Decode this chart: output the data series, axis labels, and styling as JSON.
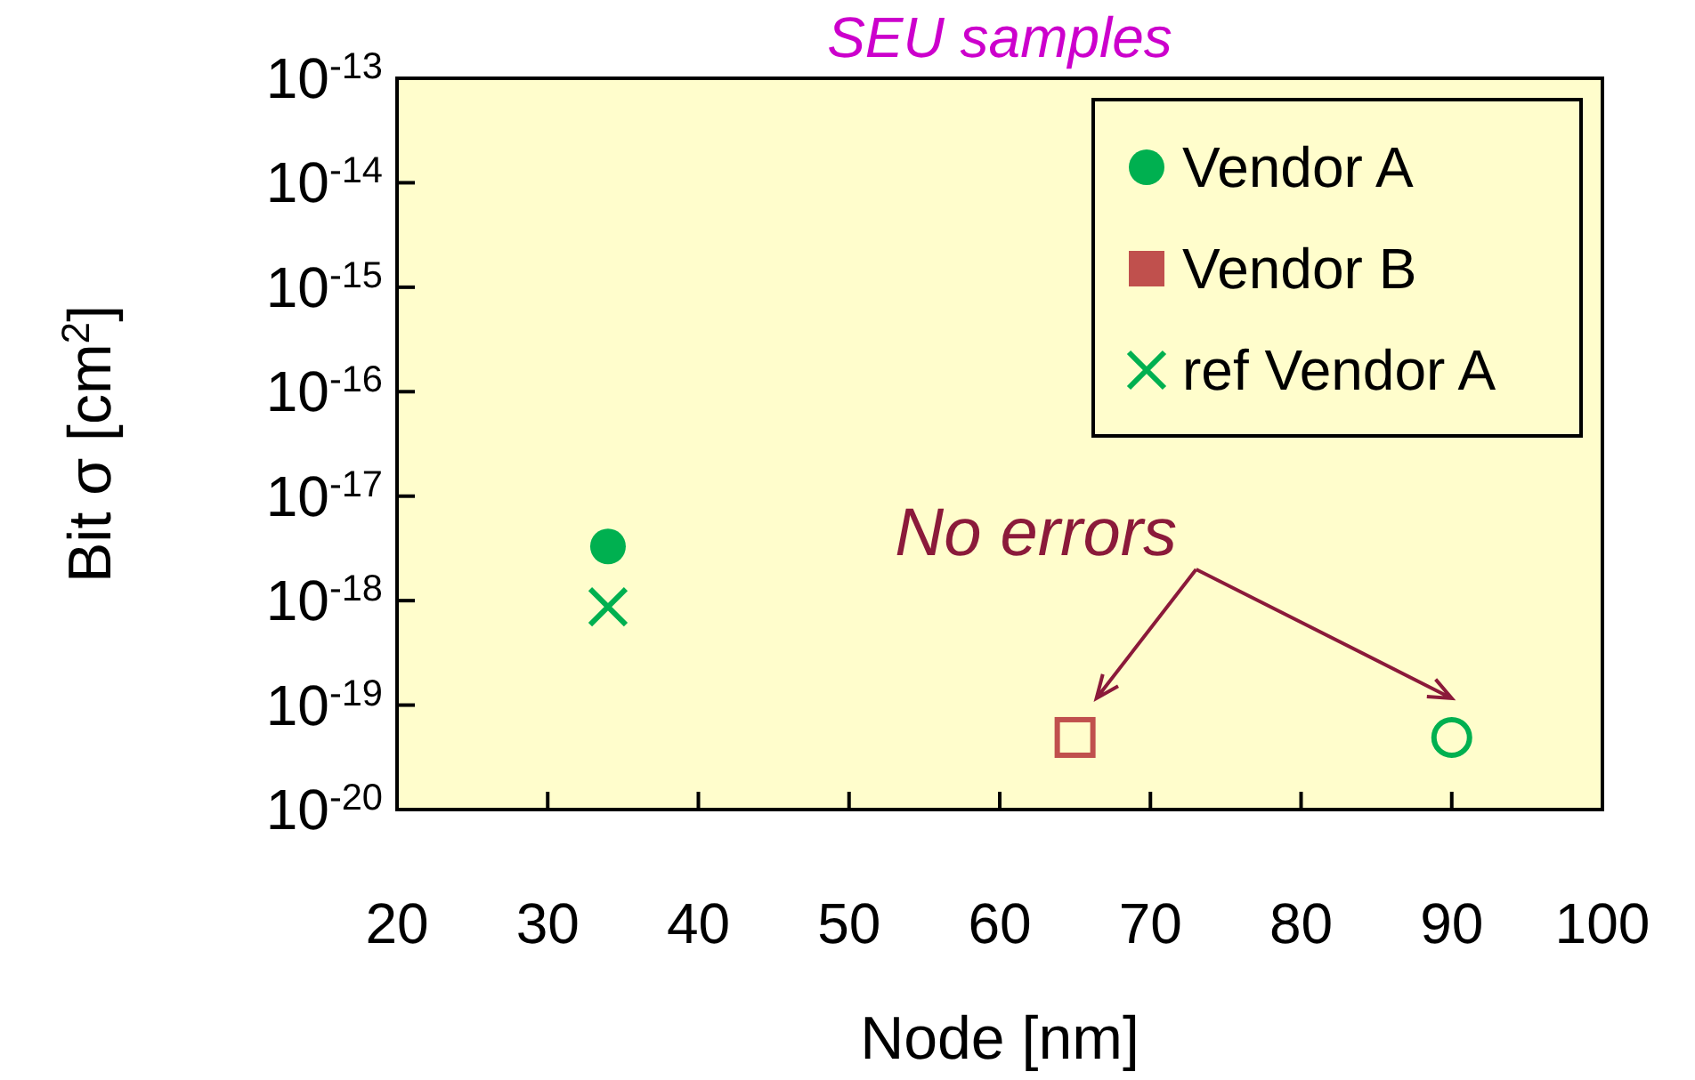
{
  "chart_data": {
    "type": "scatter",
    "title": "SEU samples",
    "xlabel": "Node [nm]",
    "ylabel": "Bit σ [cm$^{2}$]",
    "xlim": [
      20,
      100
    ],
    "xticks": [
      20,
      30,
      40,
      50,
      60,
      70,
      80,
      90,
      100
    ],
    "ylim": [
      1e-20,
      1e-13
    ],
    "yticks": [
      {
        "value": 1e-20,
        "label": "10$^{-20}$"
      },
      {
        "value": 1e-19,
        "label": "10$^{-19}$"
      },
      {
        "value": 1e-18,
        "label": "10$^{-18}$"
      },
      {
        "value": 1e-17,
        "label": "10$^{-17}$"
      },
      {
        "value": 1e-16,
        "label": "10$^{-16}$"
      },
      {
        "value": 1e-15,
        "label": "10$^{-15}$"
      },
      {
        "value": 1e-14,
        "label": "10$^{-14}$"
      },
      {
        "value": 1e-13,
        "label": "10$^{-13}$"
      }
    ],
    "log": "y",
    "grid": false,
    "legend": "top right",
    "series": [
      {
        "name": "Vendor A",
        "color": "#00b050",
        "marker": "circle",
        "x": [
          34
        ],
        "values": [
          3.3e-18
        ]
      },
      {
        "name": "Vendor B",
        "color": "#c0504d",
        "marker": "square",
        "x": [
          65
        ],
        "values": [
          4.9e-20
        ]
      },
      {
        "name": "ref Vendor A",
        "color": "#00b050",
        "marker": "cross",
        "x": [
          34
        ],
        "values": [
          8.7e-19
        ]
      },
      {
        "color": "#00b050",
        "marker": "circle",
        "x": [
          90
        ],
        "values": [
          4.9e-20
        ]
      }
    ],
    "annotations": [
      {
        "text": "No errors",
        "x": 65,
        "y": 4.9e-20
      }
    ]
  }
}
